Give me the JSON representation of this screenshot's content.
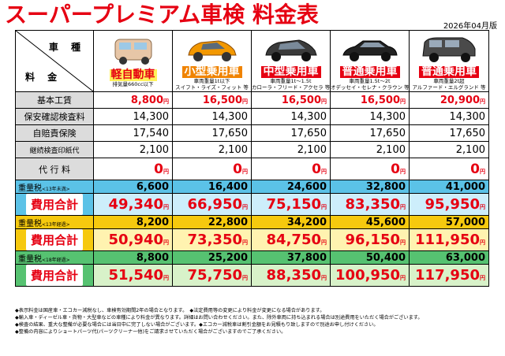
{
  "title": "スーパープレミアム車検 料金表",
  "edition": "2026年04月版",
  "header": {
    "vehicle_label": "車 種",
    "fee_label": "料 金"
  },
  "cars": [
    {
      "type": "軽自動車",
      "note": "排気量660cc以下",
      "style": "kei",
      "body_color": "#e7c6a7"
    },
    {
      "type": "小型乗用車",
      "note": "車両重量1t以下\nスイフト・ライズ・フィット 等",
      "style": "orange",
      "body_color": "#f39800"
    },
    {
      "type": "中型乗用車",
      "note": "車両重量1t～1.5t\nカローラ・フリード・アクセラ 等",
      "style": "redbg",
      "body_color": "#3a3a3a"
    },
    {
      "type": "普通乗用車",
      "note": "車両重量1.5t～2t\nオデッセイ・セレナ・クラウン 等",
      "style": "redbg",
      "body_color": "#222222"
    },
    {
      "type": "普通乗用車",
      "note": "車両重量2t超\nアルファード・エルグランド 等",
      "style": "redbg",
      "body_color": "#4a4a4a"
    }
  ],
  "yen": "円",
  "rows": [
    {
      "label": "基本工賃",
      "values": [
        "8,800",
        "16,500",
        "16,500",
        "16,500",
        "20,900"
      ],
      "red": true
    },
    {
      "label": "保安確認検査料",
      "values": [
        "14,300",
        "14,300",
        "14,300",
        "14,300",
        "14,300"
      ]
    },
    {
      "label": "自賠責保険",
      "values": [
        "17,540",
        "17,650",
        "17,650",
        "17,650",
        "17,650"
      ]
    },
    {
      "label": "継続検査印紙代",
      "values": [
        "2,100",
        "2,100",
        "2,100",
        "2,100",
        "2,100"
      ],
      "small": true
    },
    {
      "label": "代 行 料",
      "values": [
        "0",
        "0",
        "0",
        "0",
        "0"
      ],
      "zero": true
    }
  ],
  "groups": [
    {
      "weight_label": "重量税",
      "weight_sub": "<13年未満>",
      "weights": [
        "6,600",
        "16,400",
        "24,600",
        "32,800",
        "41,000"
      ],
      "total_label": "費用合計",
      "totals": [
        "49,340",
        "66,950",
        "75,150",
        "83,350",
        "95,950"
      ]
    },
    {
      "weight_label": "重量税",
      "weight_sub": "<13年経過>",
      "weights": [
        "8,200",
        "22,800",
        "34,200",
        "45,600",
        "57,000"
      ],
      "total_label": "費用合計",
      "totals": [
        "50,940",
        "73,350",
        "84,750",
        "96,150",
        "111,950"
      ]
    },
    {
      "weight_label": "重量税",
      "weight_sub": "<18年経過>",
      "weights": [
        "8,800",
        "25,200",
        "37,800",
        "50,400",
        "63,000"
      ],
      "total_label": "費用合計",
      "totals": [
        "51,540",
        "75,750",
        "88,350",
        "100,950",
        "117,950"
      ]
    }
  ],
  "notes": [
    "◆表示料金は国産車・エコカー減税なし、車検有効期間2年の場合となります。　◆法定費用等の変更により料金が変更になる場合があります。",
    "◆輸入車・ディーゼル車・貨物・大型車などの車種により料金が異なります。詳細はお問い合わせください。また、除外車両に持ち込まれる場合は別途費用をいただく場合がございます。",
    "◆検査の結果、重大な整備が必要な場合には当日中に完了しない場合がございます。◆エコカー減税車は割引金額をお見積もり致しますので別途お申し付けください。",
    "◆整備の内容によりショートパーツ代(パーツクリーナー他)をご請求させていただく場合がございますのでご了承ください。"
  ],
  "colors": {
    "red": "#e60012",
    "band1": "#5bc2e7",
    "band2": "#f6c90e",
    "band3": "#56c271",
    "label_gray": "#dcdcdc"
  }
}
